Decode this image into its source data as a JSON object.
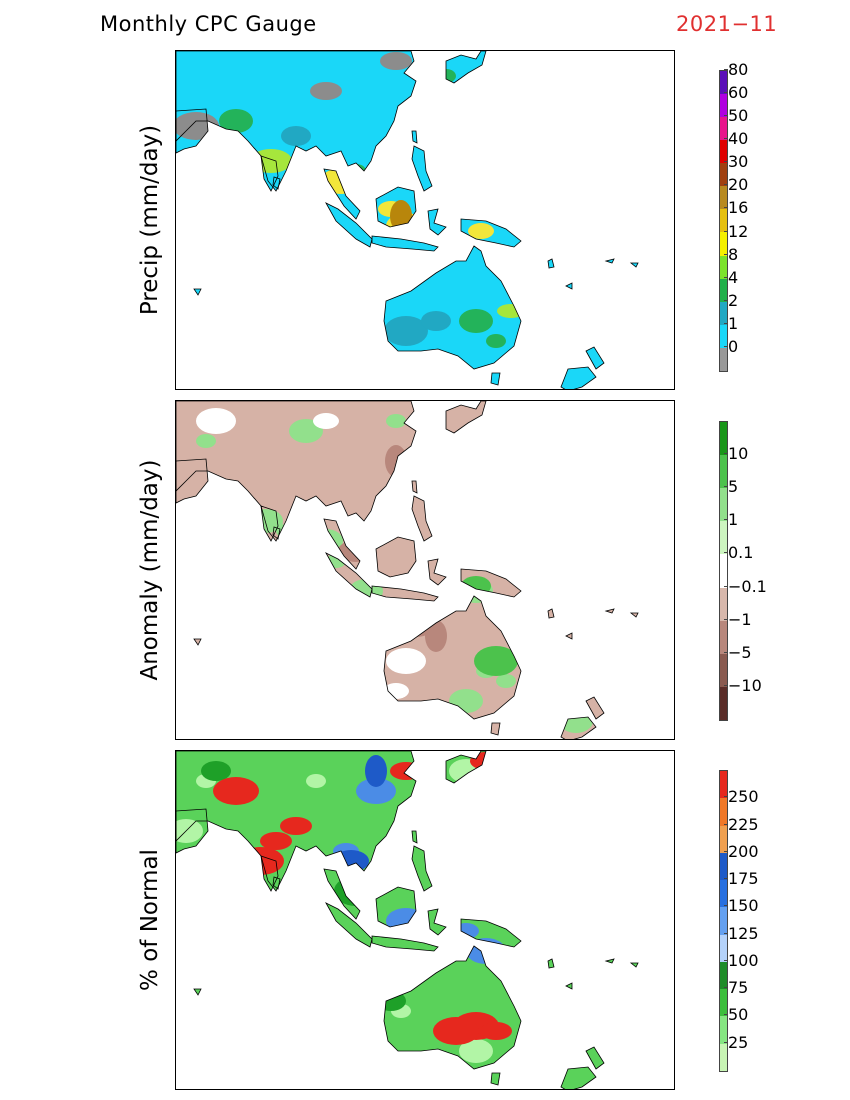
{
  "header": {
    "title": "Monthly CPC Gauge",
    "date": "2021−11"
  },
  "panels": [
    {
      "ylabel": "Precip (mm/day)",
      "variable": "precipitation",
      "ocean_color": "#ffffff",
      "land": {
        "dry": "#1ad7f8",
        "low": "#21a8c3",
        "mid": "#23b35a",
        "wet": "#a6e63c",
        "heavy": "#f2e63a",
        "vheavy": "#b8860b",
        "nodata": "#8c8c8c"
      },
      "colorbar": {
        "colors": [
          "#999999",
          "#1ad7f8",
          "#21a8c3",
          "#20b04a",
          "#7ce32c",
          "#f5f000",
          "#e6c010",
          "#b88a20",
          "#a04010",
          "#e00000",
          "#e8148c",
          "#b000e0",
          "#5a0fb8"
        ],
        "labels": [
          "0",
          "1",
          "2",
          "4",
          "8",
          "12",
          "16",
          "20",
          "30",
          "40",
          "50",
          "60",
          "80"
        ]
      }
    },
    {
      "ylabel": "Anomaly (mm/day)",
      "variable": "anomaly",
      "ocean_color": "#ffffff",
      "land": {
        "neutral": "#ffffff",
        "dry": "#d6b2a6",
        "drier": "#b8877c",
        "wet": "#92e08c",
        "wetter": "#4cc24c"
      },
      "colorbar": {
        "colors": [
          "#5a2c28",
          "#8a5a50",
          "#b8877c",
          "#d8b8ac",
          "#ffffff",
          "#cdf5c0",
          "#92e08c",
          "#4cc24c",
          "#199619"
        ],
        "labels": [
          "−10",
          "−5",
          "−1",
          "−0.1",
          "0.1",
          "1",
          "5",
          "10"
        ]
      }
    },
    {
      "ylabel": "% of Normal",
      "variable": "percent_normal",
      "ocean_color": "#ffffff",
      "land": {
        "low": "#b2f5a6",
        "mid": "#5ad25a",
        "near": "#1ea028",
        "above": "#4b8ce6",
        "high": "#1e5ac8",
        "vhigh": "#e6281e"
      },
      "colorbar": {
        "colors": [
          "#c8f5b4",
          "#86e682",
          "#3cbe3c",
          "#1e8c28",
          "#b4d2fa",
          "#64a0f0",
          "#2870e0",
          "#1e5ac8",
          "#f0a050",
          "#f07828",
          "#e6281e"
        ],
        "labels": [
          "25",
          "50",
          "75",
          "100",
          "125",
          "150",
          "175",
          "200",
          "225",
          "250"
        ]
      }
    }
  ]
}
